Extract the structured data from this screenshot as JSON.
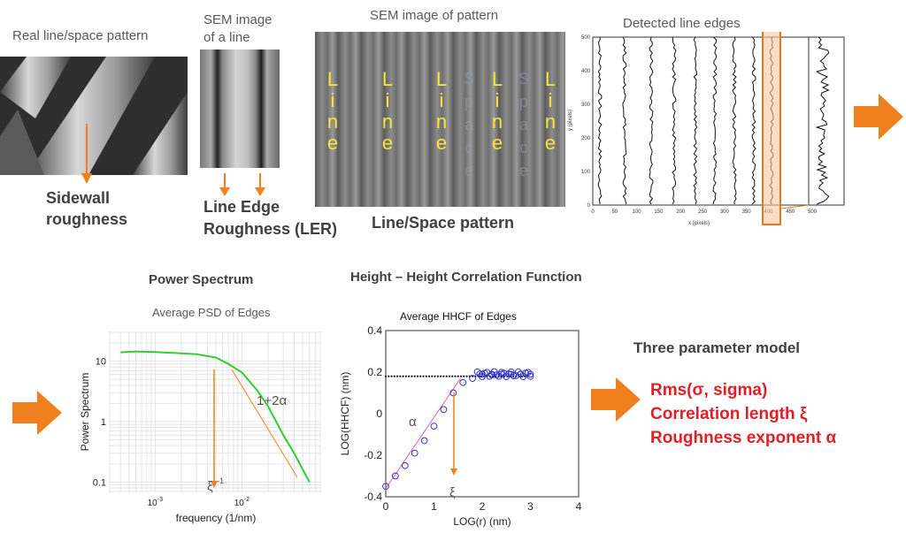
{
  "panels": {
    "real_pattern": {
      "caption": "Real line/space pattern",
      "label_line1": "Sidewall",
      "label_line2": "roughness"
    },
    "sem_line": {
      "caption_line1": "SEM image",
      "caption_line2": "of a line",
      "label_line1": "Line Edge",
      "label_line2": "Roughness (LER)"
    },
    "sem_pattern": {
      "caption": "SEM image of pattern",
      "label": "Line/Space pattern",
      "columns": [
        "L",
        "i",
        "n",
        "e"
      ],
      "space_letters": [
        "S",
        "p",
        "a",
        "c",
        "e"
      ]
    },
    "edges": {
      "caption": "Detected line edges",
      "xlabel": "x (pixels)",
      "ylabel": "y (pixels)",
      "xticks": [
        "0",
        "50",
        "100",
        "150",
        "200",
        "250",
        "300",
        "350",
        "400",
        "450",
        "500"
      ],
      "yticks": [
        "0",
        "100",
        "200",
        "300",
        "400",
        "500"
      ]
    }
  },
  "psd": {
    "header": "Power Spectrum",
    "title": "Average PSD of Edges",
    "xlabel": "frequency (1/nm)",
    "ylabel": "Power Spectrum",
    "slope_label": "1+2α",
    "xi_label": "ξ",
    "xi_sup": "-1",
    "xtick_base": "10",
    "xtick_exps": [
      "-3",
      "-2"
    ],
    "yticks": [
      "10",
      "1",
      "0.1"
    ]
  },
  "hhcf": {
    "header": "Height – Height Correlation Function",
    "title": "Average HHCF of Edges",
    "xlabel": "LOG(r) (nm)",
    "ylabel": "LOG(HHCF) (nm)",
    "alpha_label": "α",
    "xi_label": "ξ",
    "xticks": [
      "0",
      "1",
      "2",
      "3",
      "4"
    ],
    "yticks": [
      "0.4",
      "0.2",
      "0",
      "-0.2",
      "-0.4"
    ]
  },
  "model": {
    "title": "Three parameter model",
    "items": [
      "Rms(σ, sigma)",
      "Correlation length ξ",
      "Roughness exponent α"
    ]
  },
  "colors": {
    "arrow": "#f07f1e",
    "psd_line": "#33cc33",
    "hhcf_points": "#3333cc",
    "model_text": "#e21e26"
  },
  "chart_data": [
    {
      "type": "line",
      "title": "Average PSD of Edges",
      "xlabel": "frequency (1/nm)",
      "ylabel": "Power Spectrum",
      "x_scale": "log",
      "y_scale": "log",
      "xlim": [
        0.0003,
        0.08
      ],
      "ylim": [
        0.07,
        30
      ],
      "x": [
        0.0004,
        0.0006,
        0.001,
        0.002,
        0.003,
        0.005,
        0.007,
        0.01,
        0.015,
        0.02,
        0.03,
        0.04,
        0.06
      ],
      "series": [
        {
          "values": [
            14,
            14.5,
            14.2,
            13.5,
            13,
            11.5,
            9,
            6.5,
            3.3,
            1.8,
            0.6,
            0.3,
            0.1
          ]
        }
      ]
    },
    {
      "type": "scatter",
      "title": "Average HHCF of Edges",
      "xlabel": "LOG(r) (nm)",
      "ylabel": "LOG(HHCF) (nm)",
      "xlim": [
        0,
        4
      ],
      "ylim": [
        -0.4,
        0.4
      ],
      "x": [
        0,
        0.2,
        0.4,
        0.6,
        0.8,
        1.0,
        1.2,
        1.4,
        1.6,
        1.8,
        2.0,
        2.2,
        2.4,
        2.6,
        2.8,
        3.0
      ],
      "series": [
        {
          "values": [
            -0.35,
            -0.3,
            -0.25,
            -0.19,
            -0.13,
            -0.06,
            0.02,
            0.1,
            0.15,
            0.17,
            0.19,
            0.19,
            0.19,
            0.19,
            0.19,
            0.19
          ]
        }
      ]
    }
  ]
}
